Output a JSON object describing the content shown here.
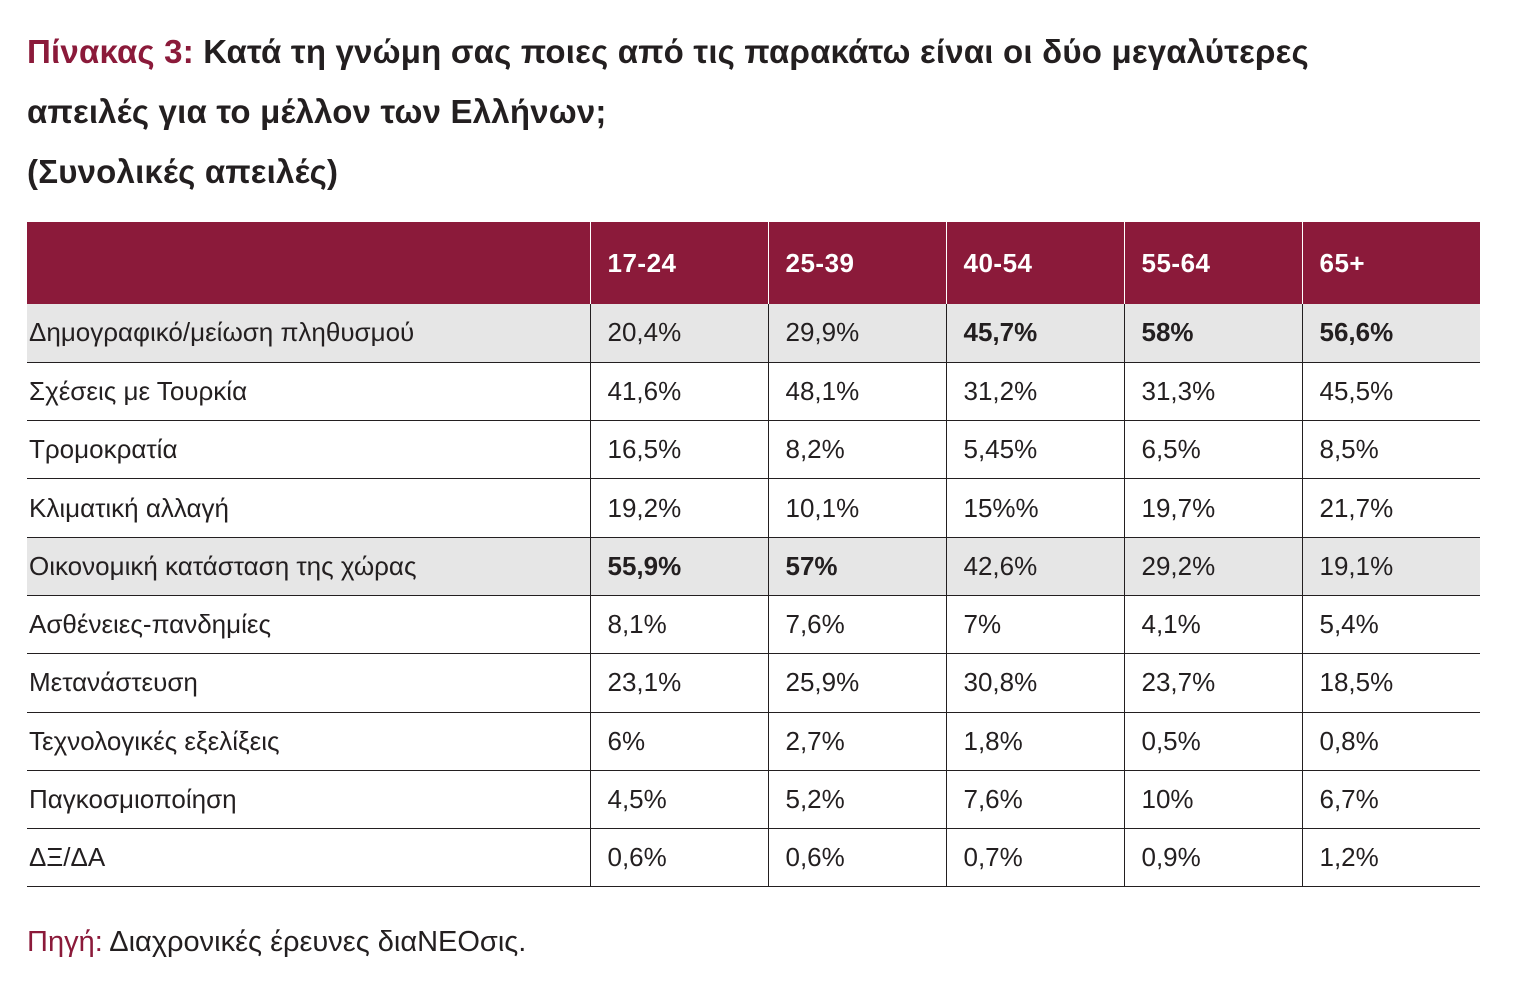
{
  "title": {
    "prefix": "Πίνακας 3:",
    "line1": "Κατά τη γνώμη σας ποιες από τις παρακάτω είναι οι δύο μεγαλύτερες",
    "line2": "απειλές για το μέλλον των Ελλήνων;",
    "line3": "(Συνολικές απειλές)"
  },
  "colors": {
    "accent": "#8b1a3a",
    "shaded_row": "#e6e6e6",
    "text": "#231f20"
  },
  "chart_data": {
    "type": "table",
    "title": "Κατά τη γνώμη σας ποιες από τις παρακάτω είναι οι δύο μεγαλύτερες απειλές για το μέλλον των Ελλήνων; (Συνολικές απειλές)",
    "columns": [
      "17-24",
      "25-39",
      "40-54",
      "55-64",
      "65+"
    ],
    "rows": [
      {
        "label": "Δημογραφικό/μείωση πληθυσμού",
        "values": [
          "20,4%",
          "29,9%",
          "45,7%",
          "58%",
          "56,6%"
        ],
        "bold": [
          false,
          false,
          true,
          true,
          true
        ],
        "shaded": true
      },
      {
        "label": "Σχέσεις με Τουρκία",
        "values": [
          "41,6%",
          "48,1%",
          "31,2%",
          "31,3%",
          "45,5%"
        ],
        "bold": [
          false,
          false,
          false,
          false,
          false
        ],
        "shaded": false
      },
      {
        "label": "Τρομοκρατία",
        "values": [
          "16,5%",
          "8,2%",
          "5,45%",
          "6,5%",
          "8,5%"
        ],
        "bold": [
          false,
          false,
          false,
          false,
          false
        ],
        "shaded": false
      },
      {
        "label": "Κλιματική αλλαγή",
        "values": [
          "19,2%",
          "10,1%",
          "15%%",
          "19,7%",
          "21,7%"
        ],
        "bold": [
          false,
          false,
          false,
          false,
          false
        ],
        "shaded": false
      },
      {
        "label": "Οικονομική κατάσταση της χώρας",
        "values": [
          "55,9%",
          "57%",
          "42,6%",
          "29,2%",
          "19,1%"
        ],
        "bold": [
          true,
          true,
          false,
          false,
          false
        ],
        "shaded": true
      },
      {
        "label": "Ασθένειες-πανδημίες",
        "values": [
          "8,1%",
          "7,6%",
          "7%",
          "4,1%",
          "5,4%"
        ],
        "bold": [
          false,
          false,
          false,
          false,
          false
        ],
        "shaded": false
      },
      {
        "label": "Μετανάστευση",
        "values": [
          "23,1%",
          "25,9%",
          "30,8%",
          "23,7%",
          "18,5%"
        ],
        "bold": [
          false,
          false,
          false,
          false,
          false
        ],
        "shaded": false
      },
      {
        "label": "Τεχνολογικές εξελίξεις",
        "values": [
          "6%",
          "2,7%",
          "1,8%",
          "0,5%",
          "0,8%"
        ],
        "bold": [
          false,
          false,
          false,
          false,
          false
        ],
        "shaded": false
      },
      {
        "label": "Παγκοσμιοποίηση",
        "values": [
          "4,5%",
          "5,2%",
          "7,6%",
          "10%",
          "6,7%"
        ],
        "bold": [
          false,
          false,
          false,
          false,
          false
        ],
        "shaded": false
      },
      {
        "label": "ΔΞ/ΔΑ",
        "values": [
          "0,6%",
          "0,6%",
          "0,7%",
          "0,9%",
          "1,2%"
        ],
        "bold": [
          false,
          false,
          false,
          false,
          false
        ],
        "shaded": false
      }
    ]
  },
  "source": {
    "prefix": "Πηγή:",
    "text": "Διαχρονικές έρευνες διαNEOσις."
  }
}
